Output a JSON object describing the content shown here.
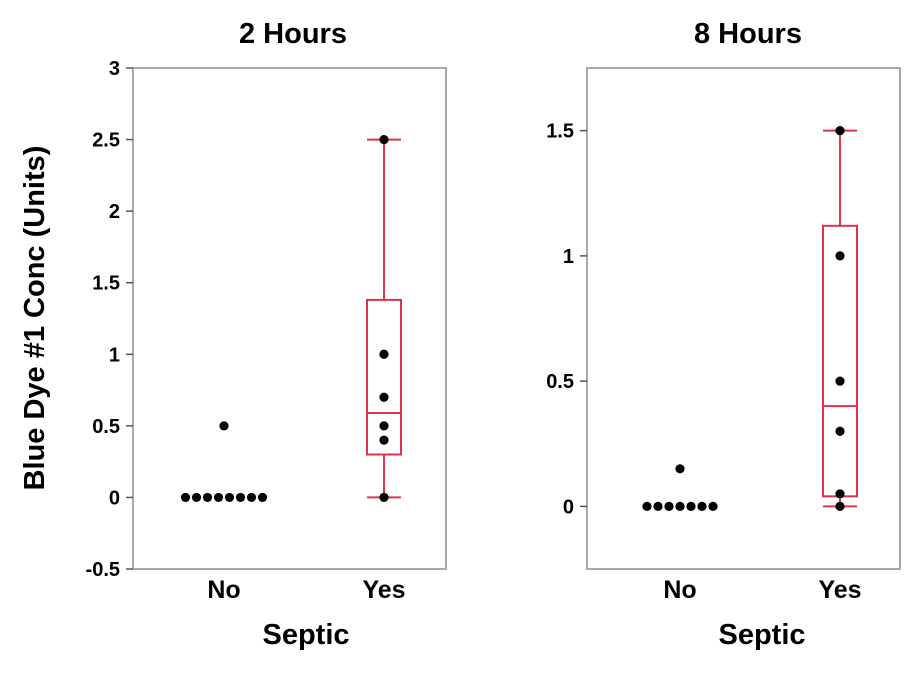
{
  "chart_data": {
    "type": "boxplot",
    "shared_ylabel": "Blue Dye #1 Conc (Units)",
    "box_color": "#d8354a",
    "point_color": "#000000",
    "panels": [
      {
        "title": "2 Hours",
        "xlabel": "Septic",
        "categories": [
          "No",
          "Yes"
        ],
        "ylim": [
          -0.5,
          3
        ],
        "yticks": [
          -0.5,
          0,
          0.5,
          1,
          1.5,
          2,
          2.5,
          3
        ],
        "ytick_labels": [
          "-0.5",
          "0",
          "0.5",
          "1",
          "1.5",
          "2",
          "2.5",
          "3"
        ],
        "points": {
          "No": [
            0,
            0,
            0,
            0,
            0,
            0,
            0,
            0,
            0.5
          ],
          "Yes": [
            2.5,
            1.0,
            0.7,
            0.5,
            0.4,
            0.0
          ]
        },
        "boxes": [
          {
            "category": "Yes",
            "whisker_low": 0.0,
            "q1": 0.3,
            "median": 0.59,
            "q3": 1.38,
            "whisker_high": 2.5
          }
        ]
      },
      {
        "title": "8 Hours",
        "xlabel": "Septic",
        "categories": [
          "No",
          "Yes"
        ],
        "ylim": [
          -0.25,
          1.75
        ],
        "yticks": [
          0,
          0.5,
          1,
          1.5
        ],
        "ytick_labels": [
          "0",
          "0.5",
          "1",
          "1.5"
        ],
        "points": {
          "No": [
            0,
            0,
            0,
            0,
            0,
            0,
            0,
            0.15
          ],
          "Yes": [
            1.5,
            1.0,
            0.5,
            0.3,
            0.05,
            0.0
          ]
        },
        "boxes": [
          {
            "category": "Yes",
            "whisker_low": 0.0,
            "q1": 0.04,
            "median": 0.4,
            "q3": 1.12,
            "whisker_high": 1.5
          }
        ]
      }
    ]
  }
}
